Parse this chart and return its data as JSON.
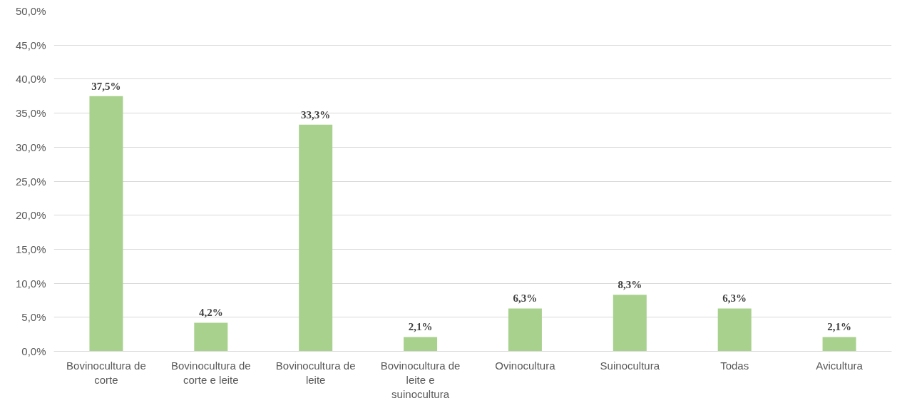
{
  "chart_data": {
    "type": "bar",
    "categories": [
      "Bovinocultura de corte",
      "Bovinocultura de corte e leite",
      "Bovinocultura de leite",
      "Bovinocultura de leite e suinocultura",
      "Ovinocultura",
      "Suinocultura",
      "Todas",
      "Avicultura"
    ],
    "values": [
      37.5,
      4.2,
      33.3,
      2.1,
      6.3,
      8.3,
      6.3,
      2.1
    ],
    "value_labels": [
      "37,5%",
      "4,2%",
      "33,3%",
      "2,1%",
      "6,3%",
      "8,3%",
      "6,3%",
      "2,1%"
    ],
    "color": "#a9d18e",
    "ylim": [
      0,
      50
    ],
    "yticks": [
      {
        "value": 0,
        "label": "0,0%"
      },
      {
        "value": 5,
        "label": "5,0%"
      },
      {
        "value": 10,
        "label": "10,0%"
      },
      {
        "value": 15,
        "label": "15,0%"
      },
      {
        "value": 20,
        "label": "20,0%"
      },
      {
        "value": 25,
        "label": "25,0%"
      },
      {
        "value": 30,
        "label": "30,0%"
      },
      {
        "value": 35,
        "label": "35,0%"
      },
      {
        "value": 40,
        "label": "40,0%"
      },
      {
        "value": 45,
        "label": "45,0%"
      },
      {
        "value": 50,
        "label": "50,0%"
      }
    ],
    "grid": "y"
  }
}
